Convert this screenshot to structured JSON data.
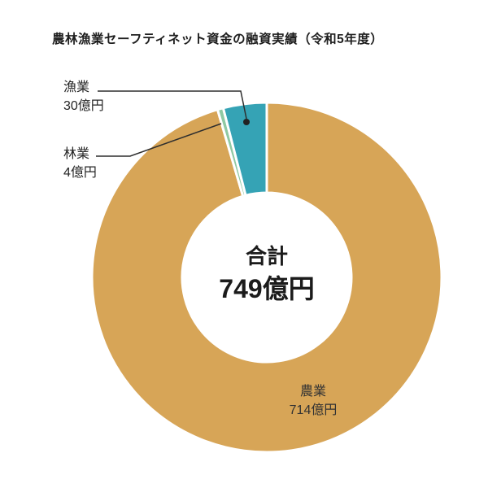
{
  "chart_data": {
    "type": "pie",
    "subtype": "donut",
    "title": "農林漁業セーフティネット資金の融資実績（令和5年度）",
    "unit": "億円",
    "total_label": "合計",
    "total_value": "749億円",
    "direction": "clockwise",
    "start_angle_deg": 0,
    "legend_position": "callout-labels",
    "segments": [
      {
        "label": "農業",
        "value": 714,
        "value_label": "714億円",
        "color": "#D7A557",
        "label_placement": "inside-bottom-right"
      },
      {
        "label": "林業",
        "value": 4,
        "value_label": "4億円",
        "color": "#8FC9A3",
        "label_placement": "callout-left"
      },
      {
        "label": "漁業",
        "value": 30,
        "value_label": "30億円",
        "color": "#35A3B5",
        "label_placement": "callout-left"
      }
    ]
  }
}
